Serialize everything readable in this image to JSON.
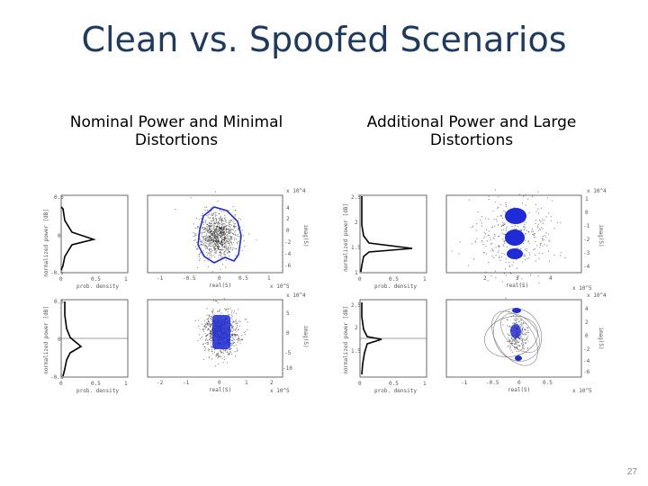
{
  "slide": {
    "title": "Clean vs. Spoofed Scenarios",
    "page_number": "27",
    "captions": {
      "left": "Nominal Power and Minimal Distortions",
      "right": "Additional Power and Large Distortions"
    }
  },
  "colors": {
    "title": "#1f3a5f",
    "highlight": "#1f2bd6",
    "scatter": "#222222"
  },
  "figures": [
    {
      "id": "nominal-top",
      "ylabel": "normalized power [dB]",
      "xlabel_density": "prob. density",
      "xlabel_scatter": "real(S)",
      "y2label": "imag(S)",
      "left_ticks": [
        "0.5",
        "0",
        "-0.5"
      ],
      "density_ticks": [
        "0",
        "0.5",
        "1"
      ],
      "scatter_xticks": [
        "-1",
        "-0.5",
        "0",
        "0.5",
        "1"
      ],
      "scatter_yticks": [
        "4",
        "2",
        "0",
        "-2",
        "-4",
        "-6"
      ],
      "exp_top": "x 10^4",
      "exp_bottom": "x 10^5"
    },
    {
      "id": "nominal-bottom",
      "ylabel": "normalized power [dB]",
      "xlabel_density": "prob. density",
      "xlabel_scatter": "real(S)",
      "y2label": "imag(S)",
      "left_ticks": [
        "0.5",
        "0",
        "-0.5"
      ],
      "density_ticks": [
        "0",
        "0.5",
        "1"
      ],
      "scatter_xticks": [
        "-2",
        "-1",
        "0",
        "1",
        "2"
      ],
      "scatter_yticks": [
        "5",
        "0",
        "-5",
        "-10"
      ],
      "exp_top": "x 10^4",
      "exp_bottom": "x 10^5"
    },
    {
      "id": "spoofed-top",
      "ylabel": "normalized power [dB]",
      "xlabel_density": "prob. density",
      "xlabel_scatter": "real(S)",
      "y2label": "imag(S)",
      "left_ticks": [
        "2.5",
        "2",
        "1.5",
        "1"
      ],
      "density_ticks": [
        "0",
        "0.5",
        "1"
      ],
      "scatter_xticks": [
        "2",
        "3",
        "4"
      ],
      "scatter_yticks": [
        "1",
        "0",
        "-1",
        "-2",
        "-3",
        "-4"
      ],
      "exp_top": "x 10^4",
      "exp_bottom": "x 10^5"
    },
    {
      "id": "spoofed-bottom",
      "ylabel": "normalized power [dB]",
      "xlabel_density": "prob. density",
      "xlabel_scatter": "real(S)",
      "y2label": "imag(S)",
      "left_ticks": [
        "2.5",
        "2",
        "1.5"
      ],
      "density_ticks": [
        "0",
        "0.5",
        "1"
      ],
      "scatter_xticks": [
        "-1",
        "-0.5",
        "0",
        "0.5"
      ],
      "scatter_yticks": [
        "4",
        "2",
        "0",
        "-2",
        "-4",
        "-6"
      ],
      "exp_top": "x 10^4",
      "exp_bottom": "x 10^5"
    }
  ]
}
